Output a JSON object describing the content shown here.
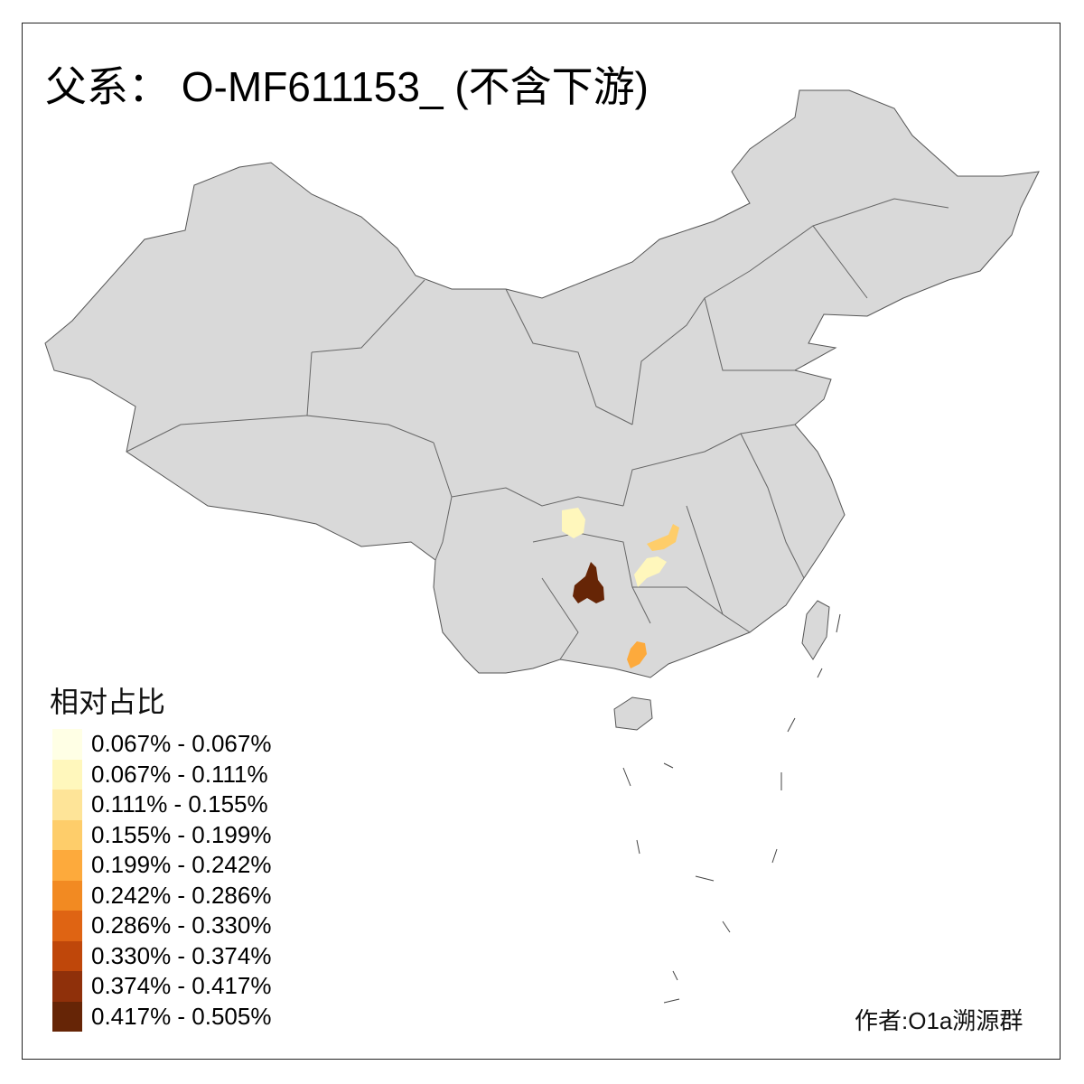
{
  "title": "父系： O-MF611153_ (不含下游)",
  "legend": {
    "title": "相对占比",
    "items": [
      {
        "label": "0.067% - 0.067%",
        "color": "#FFFFE5"
      },
      {
        "label": "0.067% - 0.111%",
        "color": "#FFF7BC"
      },
      {
        "label": "0.111% - 0.155%",
        "color": "#FEE498"
      },
      {
        "label": "0.155% - 0.199%",
        "color": "#FECD6A"
      },
      {
        "label": "0.199% - 0.242%",
        "color": "#FDAA3C"
      },
      {
        "label": "0.242% - 0.286%",
        "color": "#F28A22"
      },
      {
        "label": "0.286% - 0.330%",
        "color": "#DF6413"
      },
      {
        "label": "0.330% - 0.374%",
        "color": "#BF470A"
      },
      {
        "label": "0.374% - 0.417%",
        "color": "#8F300A"
      },
      {
        "label": "0.417% - 0.505%",
        "color": "#662506"
      }
    ]
  },
  "map": {
    "base_color": "#D9D9D9",
    "border_color": "#666666",
    "highlighted_regions": [
      {
        "location": "southern Sichuan / Chongqing border",
        "color": "#FFF7BC"
      },
      {
        "location": "northern Hunan",
        "color": "#FECD6A"
      },
      {
        "location": "central Hunan",
        "color": "#FFF7BC"
      },
      {
        "location": "central Guizhou",
        "color": "#662506"
      },
      {
        "location": "eastern Guangxi",
        "color": "#FDAA3C"
      }
    ]
  },
  "credit": "作者:O1a溯源群"
}
